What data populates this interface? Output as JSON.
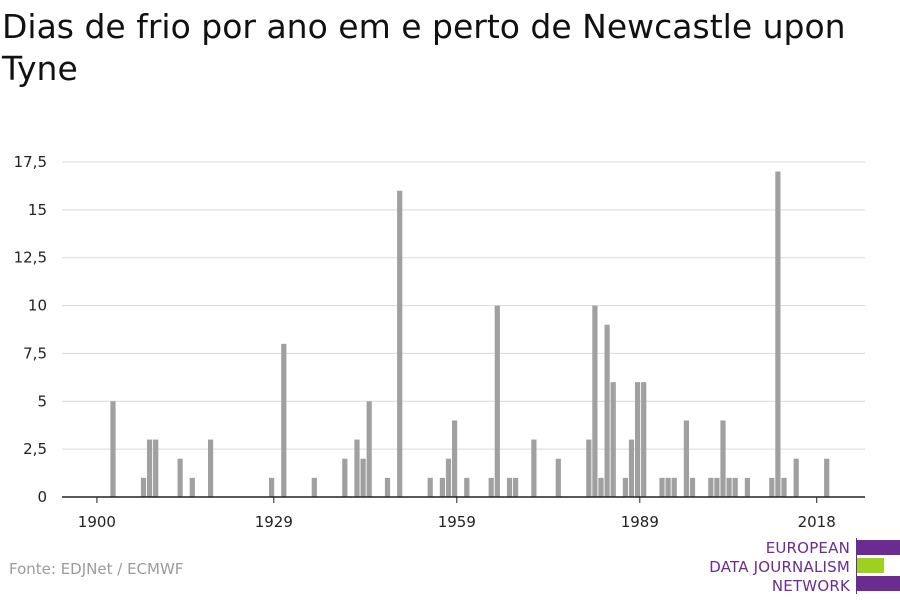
{
  "title": "Dias de frio por ano em e perto de Newcastle upon Tyne",
  "source": "Fonte: EDJNet / ECMWF",
  "logo": {
    "lines": [
      "EUROPEAN",
      "DATA JOURNALISM",
      "NETWORK"
    ],
    "bar_colors": [
      "#6a2c91",
      "#9ed11f",
      "#6a2c91"
    ]
  },
  "colors": {
    "bar": "#a0a0a0",
    "grid": "#d9d9d9",
    "axis": "#222222",
    "text": "#222222"
  },
  "chart_data": {
    "type": "bar",
    "title": "Dias de frio por ano em e perto de Newcastle upon Tyne",
    "xlabel": "",
    "ylabel": "",
    "x_ticks": [
      1900,
      1929,
      1959,
      1989,
      2018
    ],
    "y_ticks": [
      "0",
      "2,5",
      "5",
      "7,5",
      "10",
      "12,5",
      "15",
      "17,5"
    ],
    "y_tick_values": [
      0,
      2.5,
      5,
      7.5,
      10,
      12.5,
      15,
      17.5
    ],
    "ylim": [
      0,
      17.5
    ],
    "xlim": [
      1899,
      2024
    ],
    "grid": true,
    "x": [
      1901,
      1906,
      1907,
      1908,
      1912,
      1914,
      1917,
      1927,
      1929,
      1934,
      1939,
      1941,
      1942,
      1943,
      1946,
      1948,
      1953,
      1955,
      1956,
      1957,
      1959,
      1963,
      1964,
      1966,
      1967,
      1970,
      1974,
      1979,
      1980,
      1981,
      1982,
      1983,
      1985,
      1986,
      1987,
      1988,
      1991,
      1992,
      1993,
      1995,
      1996,
      1999,
      2000,
      2001,
      2002,
      2003,
      2005,
      2009,
      2010,
      2011,
      2013,
      2018
    ],
    "values": [
      5,
      1,
      3,
      3,
      2,
      1,
      3,
      1,
      8,
      1,
      2,
      3,
      2,
      5,
      1,
      16,
      1,
      1,
      2,
      4,
      1,
      1,
      10,
      1,
      1,
      3,
      2,
      3,
      10,
      1,
      9,
      6,
      1,
      3,
      6,
      6,
      1,
      1,
      1,
      4,
      1,
      1,
      1,
      4,
      1,
      1,
      1,
      1,
      17,
      1,
      2,
      2
    ]
  }
}
